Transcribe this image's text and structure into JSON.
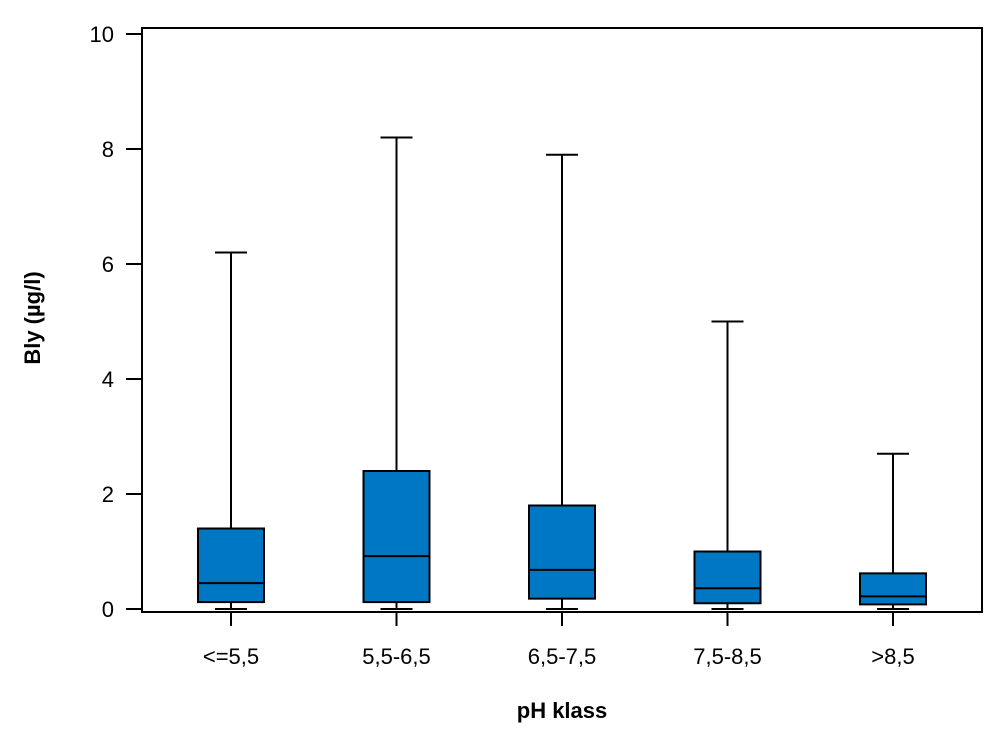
{
  "chart_data": {
    "type": "boxplot",
    "title": "",
    "xlabel": "pH klass",
    "ylabel": "Bly (µg/l)",
    "ylim": [
      0,
      10
    ],
    "yticks": [
      0,
      2,
      4,
      6,
      8,
      10
    ],
    "grid": false,
    "box_color": "#0077c3",
    "categories": [
      "<=5,5",
      "5,5-6,5",
      "6,5-7,5",
      "7,5-8,5",
      ">8,5"
    ],
    "boxes": [
      {
        "whisker_low": 0.0,
        "q1": 0.12,
        "median": 0.45,
        "q3": 1.4,
        "whisker_high": 6.2
      },
      {
        "whisker_low": 0.0,
        "q1": 0.12,
        "median": 0.92,
        "q3": 2.4,
        "whisker_high": 8.2
      },
      {
        "whisker_low": 0.0,
        "q1": 0.18,
        "median": 0.68,
        "q3": 1.8,
        "whisker_high": 7.9
      },
      {
        "whisker_low": 0.0,
        "q1": 0.1,
        "median": 0.36,
        "q3": 1.0,
        "whisker_high": 5.0
      },
      {
        "whisker_low": 0.0,
        "q1": 0.08,
        "median": 0.22,
        "q3": 0.62,
        "whisker_high": 2.7
      }
    ]
  }
}
